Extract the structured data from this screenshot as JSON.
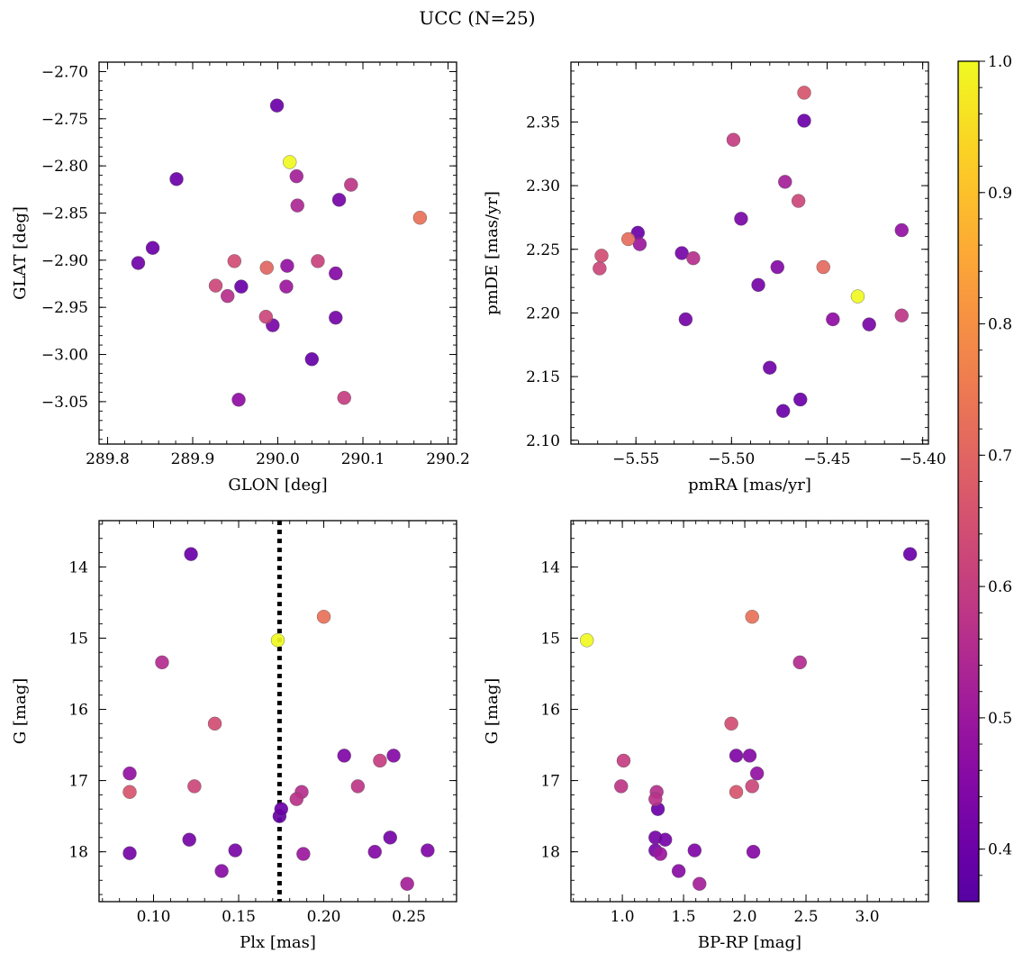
{
  "title": "UCC (N=25)",
  "colorbar": {
    "range": [
      0.36,
      1.0
    ],
    "ticks": [
      0.4,
      0.5,
      0.6,
      0.7,
      0.8,
      0.9,
      1.0
    ],
    "tick_labels": [
      "0.4",
      "0.5",
      "0.6",
      "0.7",
      "0.8",
      "0.9",
      "1.0"
    ],
    "colormap": "plasma"
  },
  "chart_data": [
    {
      "type": "scatter",
      "id": "glon-glat",
      "xlabel": "GLON [deg]",
      "ylabel": "GLAT [deg]",
      "xlim": [
        289.79,
        290.21
      ],
      "ylim": [
        -3.095,
        -2.69
      ],
      "y_inverted": false,
      "xticks": [
        289.8,
        289.9,
        290.0,
        290.1,
        290.2
      ],
      "xtick_labels": [
        "289.8",
        "289.9",
        "290.0",
        "290.1",
        "290.2"
      ],
      "yticks": [
        -3.05,
        -3.0,
        -2.95,
        -2.9,
        -2.85,
        -2.8,
        -2.75,
        -2.7
      ],
      "ytick_labels": [
        "−3.05",
        "−3.00",
        "−2.95",
        "−2.90",
        "−2.85",
        "−2.80",
        "−2.75",
        "−2.70"
      ],
      "points": [
        {
          "x": 289.999,
          "y": -2.736,
          "c": 0.4
        },
        {
          "x": 290.014,
          "y": -2.796,
          "c": 1.0
        },
        {
          "x": 289.881,
          "y": -2.814,
          "c": 0.4
        },
        {
          "x": 290.022,
          "y": -2.811,
          "c": 0.52
        },
        {
          "x": 290.086,
          "y": -2.82,
          "c": 0.58
        },
        {
          "x": 290.072,
          "y": -2.836,
          "c": 0.42
        },
        {
          "x": 290.023,
          "y": -2.842,
          "c": 0.54
        },
        {
          "x": 290.167,
          "y": -2.855,
          "c": 0.73
        },
        {
          "x": 289.853,
          "y": -2.887,
          "c": 0.4
        },
        {
          "x": 289.836,
          "y": -2.903,
          "c": 0.41
        },
        {
          "x": 289.949,
          "y": -2.901,
          "c": 0.64
        },
        {
          "x": 289.987,
          "y": -2.908,
          "c": 0.7
        },
        {
          "x": 290.011,
          "y": -2.906,
          "c": 0.48
        },
        {
          "x": 290.047,
          "y": -2.901,
          "c": 0.61
        },
        {
          "x": 290.068,
          "y": -2.914,
          "c": 0.45
        },
        {
          "x": 289.927,
          "y": -2.927,
          "c": 0.62
        },
        {
          "x": 289.957,
          "y": -2.928,
          "c": 0.4
        },
        {
          "x": 290.01,
          "y": -2.928,
          "c": 0.5
        },
        {
          "x": 289.941,
          "y": -2.938,
          "c": 0.56
        },
        {
          "x": 289.986,
          "y": -2.96,
          "c": 0.62
        },
        {
          "x": 289.994,
          "y": -2.969,
          "c": 0.43
        },
        {
          "x": 290.068,
          "y": -2.961,
          "c": 0.42
        },
        {
          "x": 290.04,
          "y": -3.005,
          "c": 0.39
        },
        {
          "x": 289.954,
          "y": -3.048,
          "c": 0.47
        },
        {
          "x": 290.078,
          "y": -3.046,
          "c": 0.6
        }
      ]
    },
    {
      "type": "scatter",
      "id": "pmra-pmde",
      "xlabel": "pmRA [mas/yr]",
      "ylabel": "pmDE [mas/yr]",
      "xlim": [
        -5.584,
        -5.397
      ],
      "ylim": [
        2.097,
        2.397
      ],
      "y_inverted": false,
      "xticks": [
        -5.55,
        -5.5,
        -5.45,
        -5.4
      ],
      "xtick_labels": [
        "−5.55",
        "−5.50",
        "−5.45",
        "−5.40"
      ],
      "yticks": [
        2.1,
        2.15,
        2.2,
        2.25,
        2.3,
        2.35
      ],
      "ytick_labels": [
        "2.10",
        "2.15",
        "2.20",
        "2.25",
        "2.30",
        "2.35"
      ],
      "points": [
        {
          "x": -5.462,
          "y": 2.373,
          "c": 0.66
        },
        {
          "x": -5.462,
          "y": 2.351,
          "c": 0.4
        },
        {
          "x": -5.499,
          "y": 2.336,
          "c": 0.6
        },
        {
          "x": -5.472,
          "y": 2.303,
          "c": 0.52
        },
        {
          "x": -5.465,
          "y": 2.288,
          "c": 0.62
        },
        {
          "x": -5.495,
          "y": 2.274,
          "c": 0.43
        },
        {
          "x": -5.411,
          "y": 2.265,
          "c": 0.48
        },
        {
          "x": -5.549,
          "y": 2.263,
          "c": 0.4
        },
        {
          "x": -5.554,
          "y": 2.258,
          "c": 0.72
        },
        {
          "x": -5.548,
          "y": 2.254,
          "c": 0.5
        },
        {
          "x": -5.526,
          "y": 2.247,
          "c": 0.42
        },
        {
          "x": -5.568,
          "y": 2.245,
          "c": 0.64
        },
        {
          "x": -5.52,
          "y": 2.243,
          "c": 0.56
        },
        {
          "x": -5.569,
          "y": 2.235,
          "c": 0.62
        },
        {
          "x": -5.476,
          "y": 2.236,
          "c": 0.45
        },
        {
          "x": -5.452,
          "y": 2.236,
          "c": 0.71
        },
        {
          "x": -5.486,
          "y": 2.222,
          "c": 0.42
        },
        {
          "x": -5.434,
          "y": 2.213,
          "c": 1.0
        },
        {
          "x": -5.411,
          "y": 2.198,
          "c": 0.58
        },
        {
          "x": -5.524,
          "y": 2.195,
          "c": 0.42
        },
        {
          "x": -5.447,
          "y": 2.195,
          "c": 0.47
        },
        {
          "x": -5.428,
          "y": 2.191,
          "c": 0.43
        },
        {
          "x": -5.48,
          "y": 2.157,
          "c": 0.41
        },
        {
          "x": -5.464,
          "y": 2.132,
          "c": 0.4
        },
        {
          "x": -5.473,
          "y": 2.123,
          "c": 0.4
        }
      ]
    },
    {
      "type": "scatter",
      "id": "plx-g",
      "xlabel": "Plx [mas]",
      "ylabel": "G [mag]",
      "xlim": [
        0.068,
        0.278
      ],
      "ylim": [
        18.7,
        13.35
      ],
      "y_inverted": true,
      "vline": {
        "x": 0.174,
        "style": "dotted"
      },
      "xticks": [
        0.1,
        0.15,
        0.2,
        0.25
      ],
      "xtick_labels": [
        "0.10",
        "0.15",
        "0.20",
        "0.25"
      ],
      "yticks": [
        14,
        15,
        16,
        17,
        18
      ],
      "ytick_labels": [
        "14",
        "15",
        "16",
        "17",
        "18"
      ],
      "points": [
        {
          "x": 0.122,
          "y": 13.82,
          "c": 0.4
        },
        {
          "x": 0.2,
          "y": 14.7,
          "c": 0.73
        },
        {
          "x": 0.173,
          "y": 15.03,
          "c": 1.0
        },
        {
          "x": 0.105,
          "y": 15.34,
          "c": 0.55
        },
        {
          "x": 0.136,
          "y": 16.2,
          "c": 0.64
        },
        {
          "x": 0.212,
          "y": 16.65,
          "c": 0.44
        },
        {
          "x": 0.241,
          "y": 16.65,
          "c": 0.45
        },
        {
          "x": 0.233,
          "y": 16.72,
          "c": 0.6
        },
        {
          "x": 0.086,
          "y": 16.9,
          "c": 0.48
        },
        {
          "x": 0.124,
          "y": 17.08,
          "c": 0.62
        },
        {
          "x": 0.22,
          "y": 17.08,
          "c": 0.58
        },
        {
          "x": 0.086,
          "y": 17.16,
          "c": 0.66
        },
        {
          "x": 0.187,
          "y": 17.16,
          "c": 0.56
        },
        {
          "x": 0.184,
          "y": 17.26,
          "c": 0.57
        },
        {
          "x": 0.175,
          "y": 17.4,
          "c": 0.4
        },
        {
          "x": 0.174,
          "y": 17.5,
          "c": 0.39
        },
        {
          "x": 0.239,
          "y": 17.8,
          "c": 0.42
        },
        {
          "x": 0.121,
          "y": 17.83,
          "c": 0.42
        },
        {
          "x": 0.148,
          "y": 17.98,
          "c": 0.43
        },
        {
          "x": 0.261,
          "y": 17.98,
          "c": 0.44
        },
        {
          "x": 0.23,
          "y": 18.0,
          "c": 0.45
        },
        {
          "x": 0.086,
          "y": 18.02,
          "c": 0.42
        },
        {
          "x": 0.188,
          "y": 18.03,
          "c": 0.5
        },
        {
          "x": 0.14,
          "y": 18.27,
          "c": 0.46
        },
        {
          "x": 0.249,
          "y": 18.45,
          "c": 0.52
        }
      ]
    },
    {
      "type": "scatter",
      "id": "bprp-g",
      "xlabel": "BP-RP [mag]",
      "ylabel": "G [mag]",
      "xlim": [
        0.58,
        3.5
      ],
      "ylim": [
        18.7,
        13.35
      ],
      "y_inverted": true,
      "xticks": [
        1.0,
        1.5,
        2.0,
        2.5,
        3.0
      ],
      "xtick_labels": [
        "1.0",
        "1.5",
        "2.0",
        "2.5",
        "3.0"
      ],
      "yticks": [
        14,
        15,
        16,
        17,
        18
      ],
      "ytick_labels": [
        "14",
        "15",
        "16",
        "17",
        "18"
      ],
      "points": [
        {
          "x": 3.35,
          "y": 13.82,
          "c": 0.4
        },
        {
          "x": 2.06,
          "y": 14.7,
          "c": 0.73
        },
        {
          "x": 0.71,
          "y": 15.03,
          "c": 1.0
        },
        {
          "x": 2.45,
          "y": 15.34,
          "c": 0.55
        },
        {
          "x": 1.89,
          "y": 16.2,
          "c": 0.64
        },
        {
          "x": 1.93,
          "y": 16.65,
          "c": 0.44
        },
        {
          "x": 2.04,
          "y": 16.65,
          "c": 0.45
        },
        {
          "x": 1.01,
          "y": 16.72,
          "c": 0.6
        },
        {
          "x": 2.1,
          "y": 16.9,
          "c": 0.48
        },
        {
          "x": 0.99,
          "y": 17.08,
          "c": 0.58
        },
        {
          "x": 2.06,
          "y": 17.08,
          "c": 0.62
        },
        {
          "x": 1.28,
          "y": 17.16,
          "c": 0.56
        },
        {
          "x": 1.93,
          "y": 17.16,
          "c": 0.66
        },
        {
          "x": 1.27,
          "y": 17.26,
          "c": 0.57
        },
        {
          "x": 1.29,
          "y": 17.4,
          "c": 0.4
        },
        {
          "x": 1.27,
          "y": 17.8,
          "c": 0.42
        },
        {
          "x": 1.35,
          "y": 17.83,
          "c": 0.42
        },
        {
          "x": 1.27,
          "y": 17.98,
          "c": 0.43
        },
        {
          "x": 1.59,
          "y": 17.98,
          "c": 0.44
        },
        {
          "x": 2.07,
          "y": 18.0,
          "c": 0.45
        },
        {
          "x": 1.31,
          "y": 18.03,
          "c": 0.5
        },
        {
          "x": 1.46,
          "y": 18.27,
          "c": 0.46
        },
        {
          "x": 1.63,
          "y": 18.45,
          "c": 0.52
        }
      ]
    }
  ]
}
